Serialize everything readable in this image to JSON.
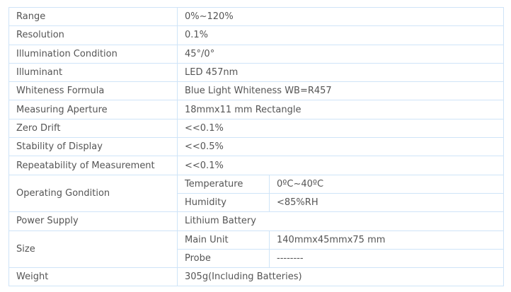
{
  "specs": {
    "range": {
      "label": "Range",
      "value": "0%~120%"
    },
    "resolution": {
      "label": "Resolution",
      "value": "0.1%"
    },
    "illumination": {
      "label": "Illumination Condition",
      "value": "45°/0°"
    },
    "illuminant": {
      "label": "Illuminant",
      "value": "LED 457nm"
    },
    "formula": {
      "label": "Whiteness Formula",
      "value": "Blue Light Whiteness WB=R457"
    },
    "aperture": {
      "label": "Measuring Aperture",
      "value": "18mmx11 mm Rectangle"
    },
    "zero_drift": {
      "label": "Zero Drift",
      "value": "<<0.1%"
    },
    "stability": {
      "label": "Stability of Display",
      "value": "<<0.5%"
    },
    "repeatability": {
      "label": "Repeatability of Measurement",
      "value": "<<0.1%"
    },
    "operating": {
      "label": "Operating Gondition",
      "temperature": {
        "label": "Temperature",
        "value": "0ºC~40ºC"
      },
      "humidity": {
        "label": "Humidity",
        "value": "<85%RH"
      }
    },
    "power": {
      "label": "Power Supply",
      "value": "Lithium Battery"
    },
    "size": {
      "label": "Size",
      "main_unit": {
        "label": "Main Unit",
        "value": "140mmx45mmx75 mm"
      },
      "probe": {
        "label": "Probe",
        "value": "--------"
      }
    },
    "weight": {
      "label": "Weight",
      "value": "305g(Including Batteries)"
    }
  },
  "colors": {
    "border": "#cfe4f8",
    "text": "#555555"
  }
}
